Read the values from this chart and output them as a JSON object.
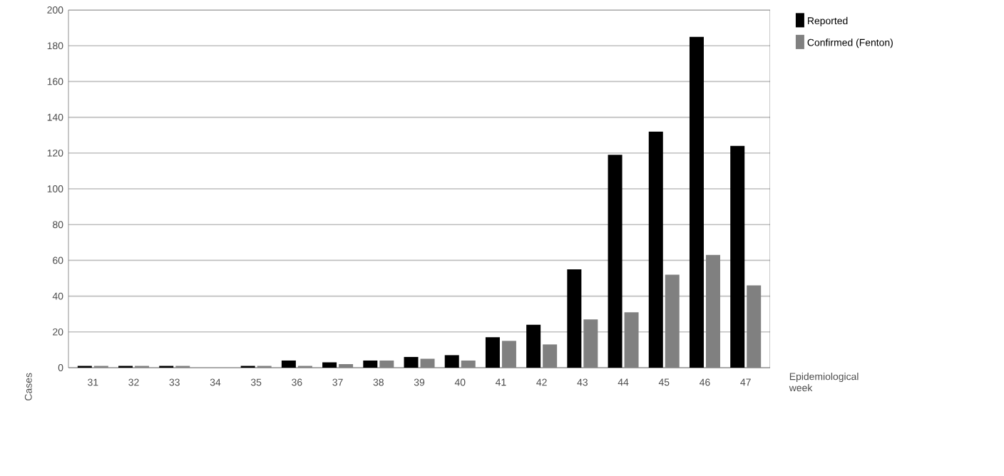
{
  "chart_data": {
    "type": "bar",
    "xlabel": "Epidemiological week",
    "ylabel": "Cases",
    "categories": [
      "31",
      "32",
      "33",
      "34",
      "35",
      "36",
      "37",
      "38",
      "39",
      "40",
      "41",
      "42",
      "43",
      "44",
      "45",
      "46",
      "47"
    ],
    "series": [
      {
        "name": "Reported",
        "color": "#000000",
        "values": [
          1,
          1,
          1,
          0,
          1,
          4,
          3,
          4,
          6,
          7,
          17,
          24,
          55,
          119,
          132,
          185,
          124
        ]
      },
      {
        "name": "Confirmed (Fenton)",
        "color": "#808080",
        "values": [
          1,
          1,
          1,
          0,
          1,
          1,
          2,
          4,
          5,
          4,
          15,
          13,
          27,
          31,
          52,
          63,
          46
        ]
      }
    ],
    "ylim": [
      0,
      200
    ],
    "yticks": [
      0,
      20,
      40,
      60,
      80,
      100,
      120,
      140,
      160,
      180,
      200
    ],
    "grid": "y",
    "legend": "top right"
  }
}
